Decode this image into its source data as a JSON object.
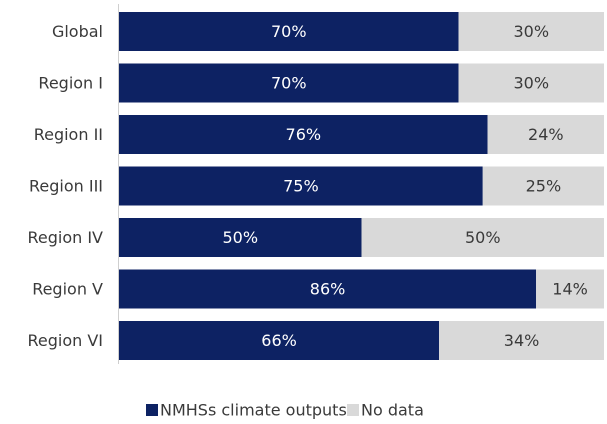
{
  "chart_data": {
    "type": "bar",
    "orientation": "horizontal",
    "stacked": true,
    "categories": [
      "Global",
      "Region I",
      "Region II",
      "Region III",
      "Region IV",
      "Region V",
      "Region VI"
    ],
    "series": [
      {
        "name": "NMHSs climate outputs",
        "values": [
          70,
          70,
          76,
          75,
          50,
          86,
          66
        ],
        "labels": [
          "70%",
          "70%",
          "76%",
          "75%",
          "50%",
          "86%",
          "66%"
        ],
        "color": "#0d2263"
      },
      {
        "name": "No data",
        "values": [
          30,
          30,
          24,
          25,
          50,
          14,
          34
        ],
        "labels": [
          "30%",
          "30%",
          "24%",
          "25%",
          "50%",
          "14%",
          "34%"
        ],
        "color": "#d9d9d9"
      }
    ],
    "xlim": [
      0,
      100
    ],
    "grid": false,
    "legend_position": "bottom"
  }
}
